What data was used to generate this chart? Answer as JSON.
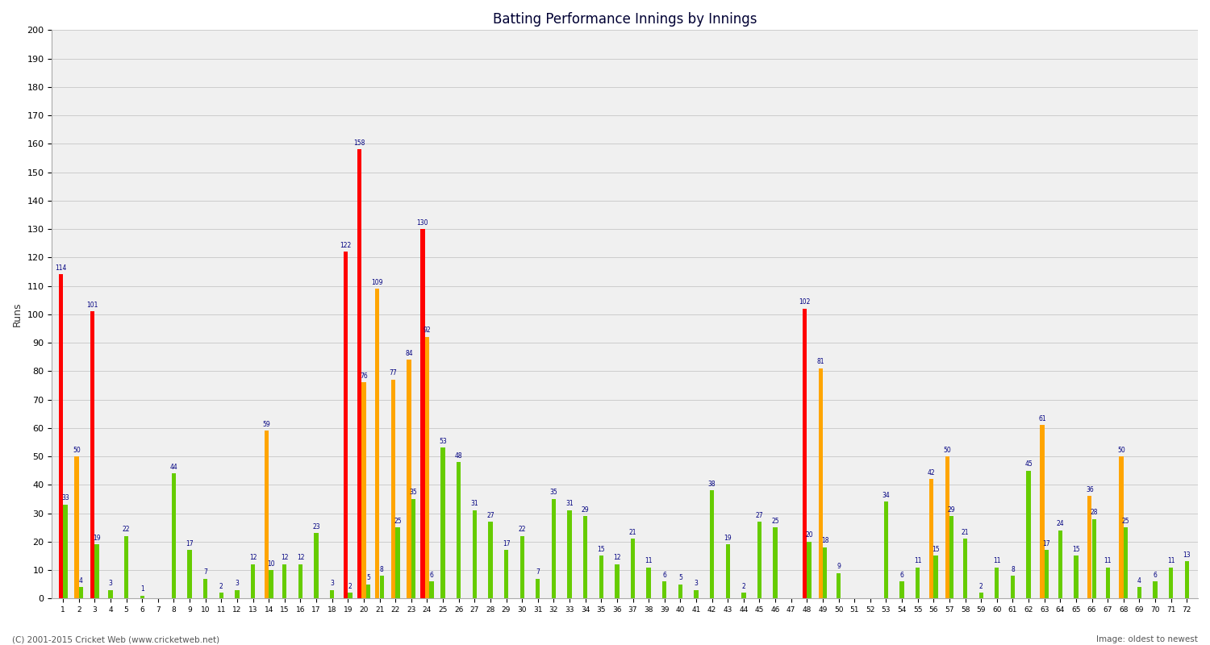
{
  "title": "Batting Performance Innings by Innings",
  "ylabel": "Runs",
  "footer": "(C) 2001-2015 Cricket Web (www.cricketweb.net)",
  "watermark": "Image: oldest to newest",
  "bar_red": "#ff0000",
  "bar_orange": "#ffa500",
  "bar_green": "#66cc00",
  "label_color": "#000080",
  "bg_color": "#f0f0f0",
  "grid_color": "#cccccc",
  "innings_data": [
    [
      114,
      0,
      33
    ],
    [
      0,
      50,
      4
    ],
    [
      101,
      0,
      19
    ],
    [
      0,
      0,
      3
    ],
    [
      0,
      0,
      22
    ],
    [
      0,
      0,
      1
    ],
    [
      0,
      0,
      0
    ],
    [
      0,
      0,
      44
    ],
    [
      0,
      0,
      17
    ],
    [
      0,
      0,
      7
    ],
    [
      0,
      0,
      2
    ],
    [
      0,
      0,
      3
    ],
    [
      0,
      0,
      12
    ],
    [
      0,
      59,
      10
    ],
    [
      0,
      0,
      12
    ],
    [
      0,
      0,
      12
    ],
    [
      0,
      0,
      23
    ],
    [
      0,
      0,
      3
    ],
    [
      122,
      0,
      2
    ],
    [
      158,
      76,
      5
    ],
    [
      0,
      109,
      8
    ],
    [
      0,
      77,
      25
    ],
    [
      0,
      84,
      35
    ],
    [
      130,
      92,
      6
    ],
    [
      0,
      0,
      53
    ],
    [
      0,
      0,
      48
    ],
    [
      0,
      0,
      31
    ],
    [
      0,
      0,
      27
    ],
    [
      0,
      0,
      17
    ],
    [
      0,
      0,
      22
    ],
    [
      0,
      0,
      7
    ],
    [
      0,
      0,
      35
    ],
    [
      0,
      0,
      31
    ],
    [
      0,
      0,
      29
    ],
    [
      0,
      0,
      15
    ],
    [
      0,
      0,
      12
    ],
    [
      0,
      0,
      21
    ],
    [
      0,
      0,
      11
    ],
    [
      0,
      0,
      6
    ],
    [
      0,
      0,
      5
    ],
    [
      0,
      0,
      3
    ],
    [
      0,
      0,
      38
    ],
    [
      0,
      0,
      19
    ],
    [
      0,
      0,
      2
    ],
    [
      0,
      0,
      27
    ],
    [
      0,
      0,
      25
    ],
    [
      0,
      0,
      0
    ],
    [
      102,
      0,
      20
    ],
    [
      0,
      81,
      18
    ],
    [
      0,
      0,
      9
    ],
    [
      0,
      0,
      0
    ],
    [
      0,
      0,
      0
    ],
    [
      0,
      0,
      34
    ],
    [
      0,
      0,
      6
    ],
    [
      0,
      0,
      11
    ],
    [
      0,
      42,
      15
    ],
    [
      0,
      50,
      29
    ],
    [
      0,
      0,
      21
    ],
    [
      0,
      0,
      2
    ],
    [
      0,
      0,
      11
    ],
    [
      0,
      0,
      8
    ],
    [
      0,
      0,
      45
    ],
    [
      0,
      61,
      17
    ],
    [
      0,
      0,
      24
    ],
    [
      0,
      0,
      15
    ],
    [
      0,
      36,
      28
    ],
    [
      0,
      0,
      11
    ],
    [
      0,
      50,
      25
    ],
    [
      0,
      0,
      4
    ],
    [
      0,
      0,
      6
    ],
    [
      0,
      0,
      11
    ],
    [
      0,
      0,
      13
    ]
  ]
}
